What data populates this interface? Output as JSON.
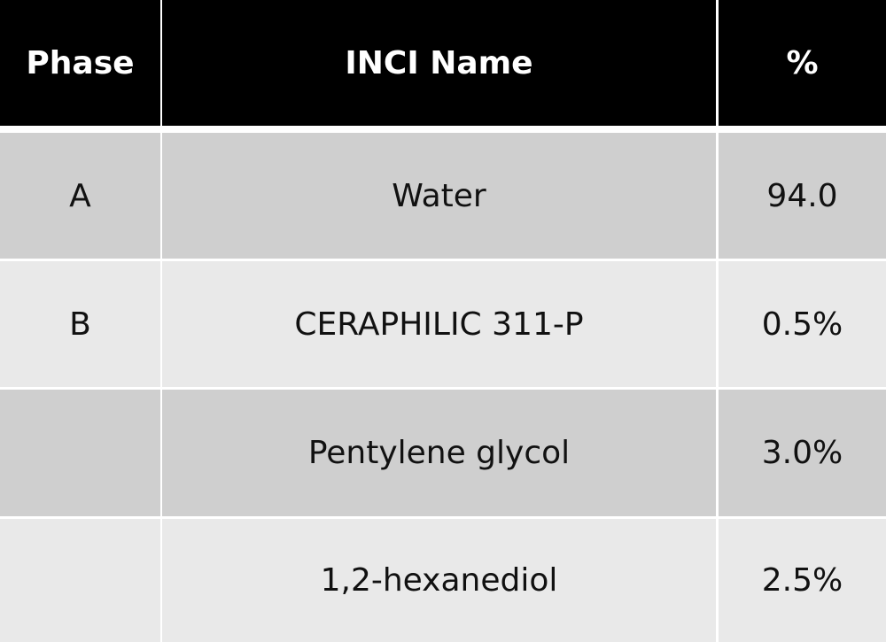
{
  "table": {
    "header": [
      "Phase",
      "INCI Name",
      "%"
    ],
    "rows": [
      [
        "A",
        "Water",
        "94.0"
      ],
      [
        "B",
        "CERAPHILIC 311-P",
        "0.5%"
      ],
      [
        null,
        "Pentylene glycol",
        "3.0%"
      ],
      [
        null,
        "1,2-hexanediol",
        "2.5%"
      ]
    ]
  }
}
